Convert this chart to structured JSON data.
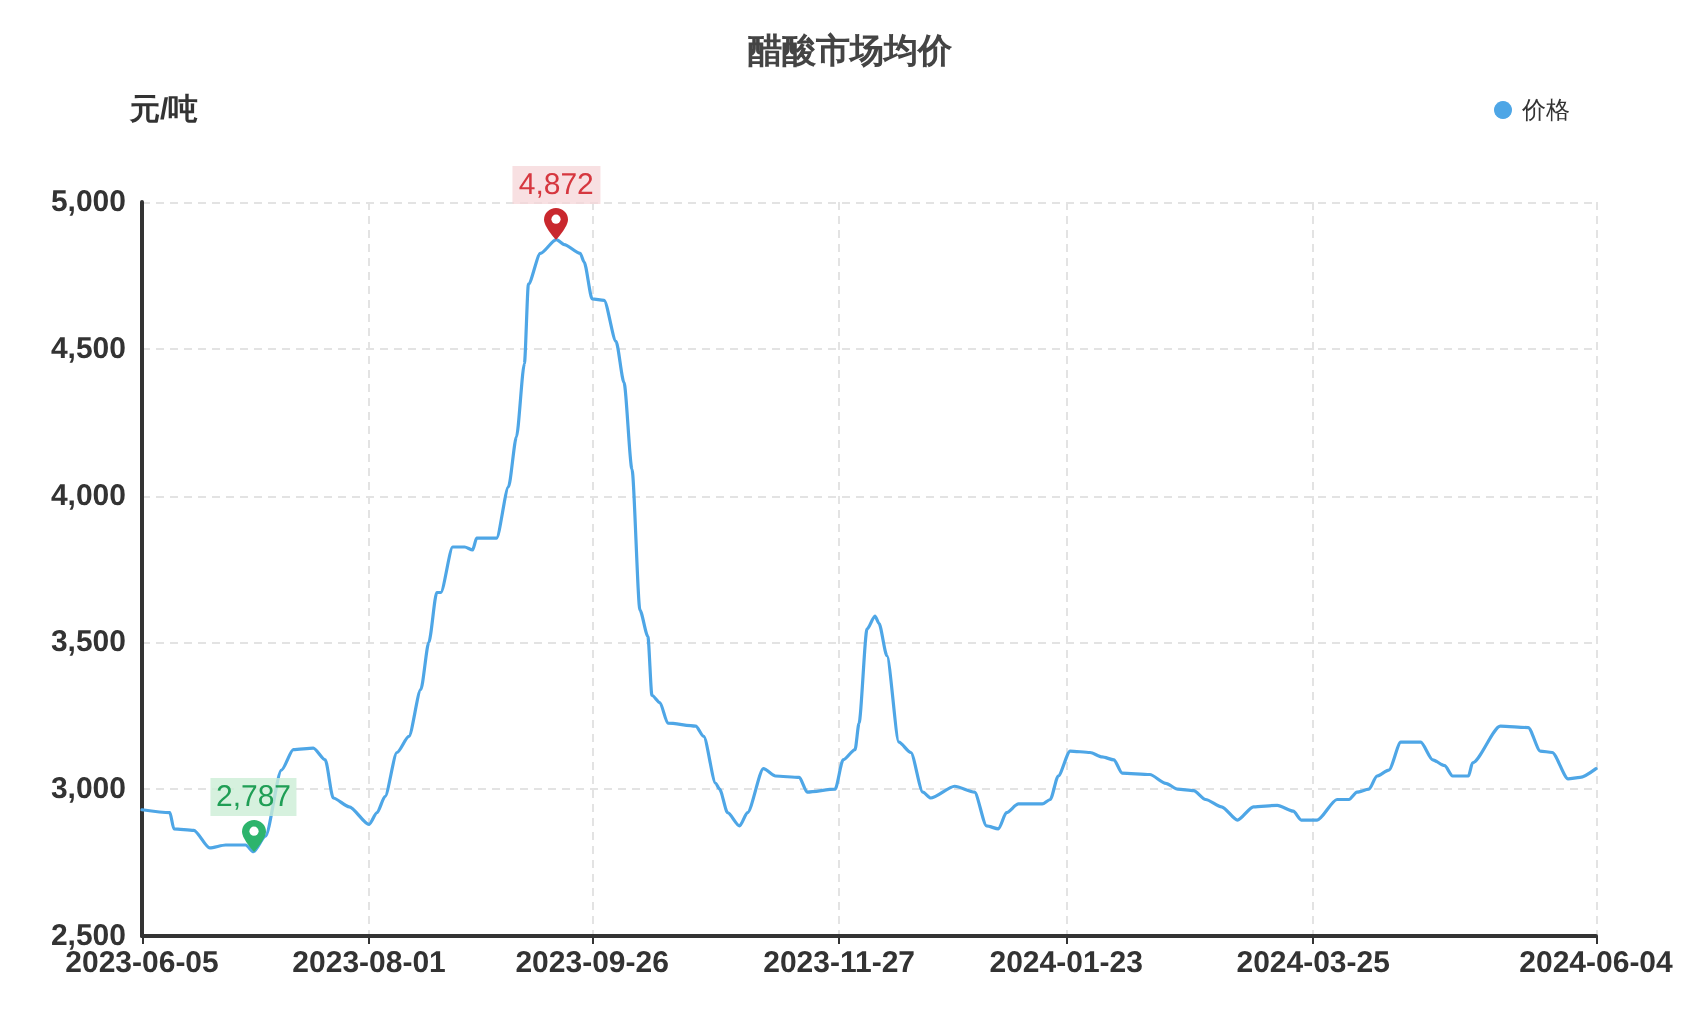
{
  "chart_data": {
    "type": "line",
    "title": "醋酸市场均价",
    "ylabel": "元/吨",
    "x": [
      "2023-06-05",
      "2023-06-12",
      "2023-06-13",
      "2023-06-18",
      "2023-06-22",
      "2023-06-26",
      "2023-07-01",
      "2023-07-03",
      "2023-07-06",
      "2023-07-10",
      "2023-07-13",
      "2023-07-18",
      "2023-07-21",
      "2023-07-23",
      "2023-07-27",
      "2023-08-01",
      "2023-08-03",
      "2023-08-05",
      "2023-08-08",
      "2023-08-11",
      "2023-08-14",
      "2023-08-16",
      "2023-08-18",
      "2023-08-19",
      "2023-08-22",
      "2023-08-25",
      "2023-08-27",
      "2023-08-28",
      "2023-09-02",
      "2023-09-05",
      "2023-09-07",
      "2023-09-09",
      "2023-09-10",
      "2023-09-13",
      "2023-09-17",
      "2023-09-19",
      "2023-09-23",
      "2023-09-24",
      "2023-09-26",
      "2023-09-29",
      "2023-10-02",
      "2023-10-04",
      "2023-10-06",
      "2023-10-08",
      "2023-10-10",
      "2023-10-11",
      "2023-10-13",
      "2023-10-15",
      "2023-10-22",
      "2023-10-24",
      "2023-10-27",
      "2023-10-28",
      "2023-10-30",
      "2023-11-02",
      "2023-11-04",
      "2023-11-08",
      "2023-11-11",
      "2023-11-17",
      "2023-11-19",
      "2023-11-26",
      "2023-11-28",
      "2023-12-01",
      "2023-12-02",
      "2023-12-04",
      "2023-12-06",
      "2023-12-07",
      "2023-12-09",
      "2023-12-12",
      "2023-12-15",
      "2023-12-18",
      "2023-12-20",
      "2023-12-26",
      "2023-12-31",
      "2024-01-03",
      "2024-01-06",
      "2024-01-08",
      "2024-01-11",
      "2024-01-17",
      "2024-01-19",
      "2024-01-21",
      "2024-01-24",
      "2024-01-29",
      "2024-02-01",
      "2024-02-04",
      "2024-02-06",
      "2024-02-13",
      "2024-02-17",
      "2024-02-20",
      "2024-02-24",
      "2024-02-27",
      "2024-03-02",
      "2024-03-06",
      "2024-03-10",
      "2024-03-16",
      "2024-03-20",
      "2024-03-22",
      "2024-03-26",
      "2024-03-31",
      "2024-04-03",
      "2024-04-05",
      "2024-04-08",
      "2024-04-10",
      "2024-04-13",
      "2024-04-16",
      "2024-04-21",
      "2024-04-24",
      "2024-04-27",
      "2024-04-29",
      "2024-05-03",
      "2024-05-04",
      "2024-05-11",
      "2024-05-18",
      "2024-05-21",
      "2024-05-24",
      "2024-05-28",
      "2024-05-31",
      "2024-06-04"
    ],
    "series": [
      {
        "name": "价格",
        "color": "#4ea6e6",
        "values": [
          2930,
          2920,
          2865,
          2860,
          2800,
          2810,
          2810,
          2787,
          2840,
          3065,
          3135,
          3140,
          3100,
          2970,
          2940,
          2880,
          2920,
          2975,
          3125,
          3180,
          3340,
          3500,
          3670,
          3670,
          3825,
          3825,
          3815,
          3855,
          3855,
          4030,
          4200,
          4450,
          4720,
          4825,
          4872,
          4855,
          4825,
          4795,
          4670,
          4665,
          4525,
          4385,
          4090,
          3610,
          3520,
          3320,
          3295,
          3225,
          3215,
          3180,
          3020,
          3000,
          2920,
          2875,
          2920,
          3070,
          3045,
          3040,
          2990,
          3000,
          3100,
          3135,
          3225,
          3545,
          3590,
          3565,
          3455,
          3160,
          3125,
          2990,
          2970,
          3010,
          2990,
          2875,
          2865,
          2920,
          2950,
          2950,
          2965,
          3045,
          3130,
          3125,
          3110,
          3100,
          3055,
          3050,
          3020,
          3000,
          2995,
          2965,
          2940,
          2895,
          2940,
          2945,
          2925,
          2895,
          2895,
          2965,
          2965,
          2990,
          3000,
          3045,
          3065,
          3160,
          3160,
          3100,
          3080,
          3045,
          3045,
          3090,
          3215,
          3210,
          3130,
          3125,
          3035,
          3040,
          3070
        ]
      }
    ],
    "xlim": [
      "2023-06-05",
      "2024-06-04"
    ],
    "xticks": [
      "2023-06-05",
      "2023-08-01",
      "2023-09-26",
      "2023-11-27",
      "2024-01-23",
      "2024-03-25",
      "2024-06-04"
    ],
    "ylim": [
      2500,
      5000
    ],
    "yticks": [
      {
        "value": 2500,
        "label": "2,500"
      },
      {
        "value": 3000,
        "label": "3,000"
      },
      {
        "value": 3500,
        "label": "3,500"
      },
      {
        "value": 4000,
        "label": "4,000"
      },
      {
        "value": 4500,
        "label": "4,500"
      },
      {
        "value": 5000,
        "label": "5,000"
      }
    ],
    "annotations": [
      {
        "text": "4,872",
        "x": "2023-09-17",
        "y": 4872
      },
      {
        "text": "2,787",
        "x": "2023-07-03",
        "y": 2787
      }
    ],
    "grid": true,
    "legend": "top right",
    "marker": "none",
    "line_style": "solid"
  }
}
